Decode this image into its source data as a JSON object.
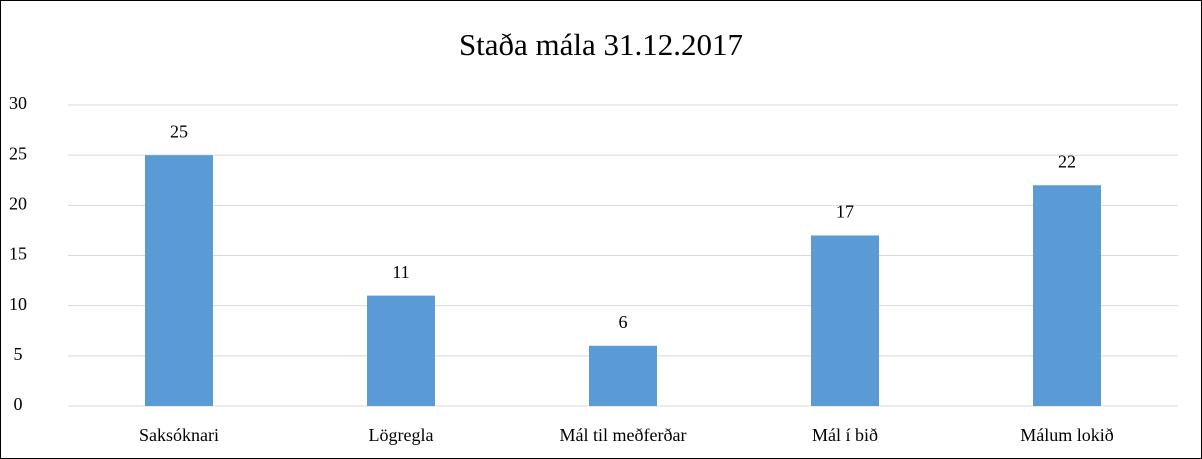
{
  "chart_data": {
    "type": "bar",
    "title": "Staða mála 31.12.2017",
    "categories": [
      "Saksóknari",
      "Lögregla",
      "Mál til meðferðar",
      "Mál í bið",
      "Málum lokið"
    ],
    "values": [
      25,
      11,
      6,
      17,
      22
    ],
    "color": "#5b9bd5",
    "ylim": [
      0,
      30
    ],
    "yticks": [
      0,
      5,
      10,
      15,
      20,
      25,
      30
    ],
    "grid": true,
    "data_labels": true
  }
}
